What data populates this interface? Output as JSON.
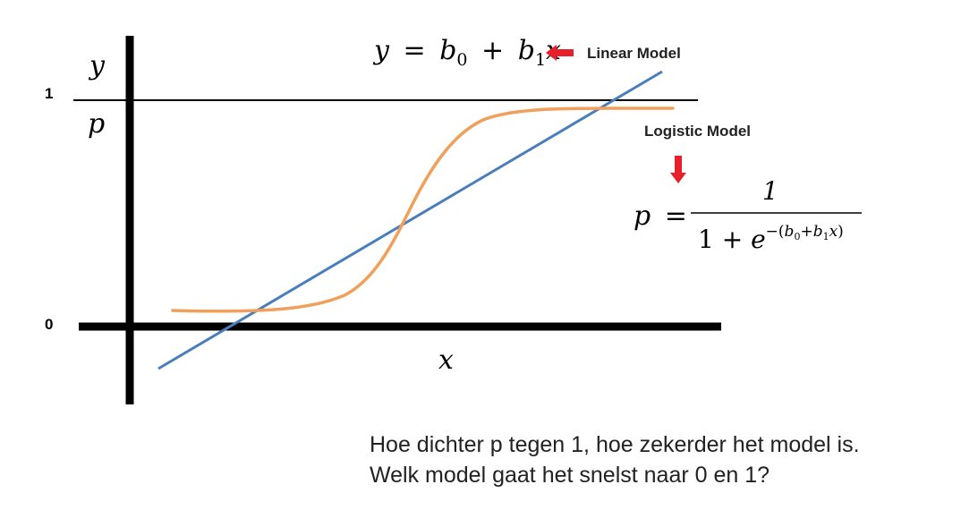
{
  "diagram": {
    "axis_labels": {
      "y_top": "y",
      "y_bottom": "p",
      "x": "x",
      "tick_one": "1",
      "tick_zero": "0"
    },
    "linear_model": {
      "equation": {
        "lhs": "y",
        "eq": "=",
        "b": "b",
        "sub0": "0",
        "plus": "+",
        "sub1": "1",
        "x": "x"
      },
      "label": "Linear Model",
      "color": "#4a7ebb"
    },
    "logistic_model": {
      "label": "Logistic Model",
      "color": "#f0a05a",
      "equation": {
        "lhs": "p",
        "eq": "=",
        "numerator": "1",
        "denominator_prefix": "1 + ",
        "e": "e",
        "exponent_open": "−(",
        "b": "b",
        "sub0": "0",
        "plus": "+",
        "sub1": "1",
        "x": "x",
        "exponent_close": ")"
      }
    },
    "arrow_color": "#e8202a"
  },
  "caption": {
    "line1": "Hoe dichter p tegen 1, hoe zekerder het model is.",
    "line2": "Welk model gaat het snelst naar 0 en 1?"
  }
}
